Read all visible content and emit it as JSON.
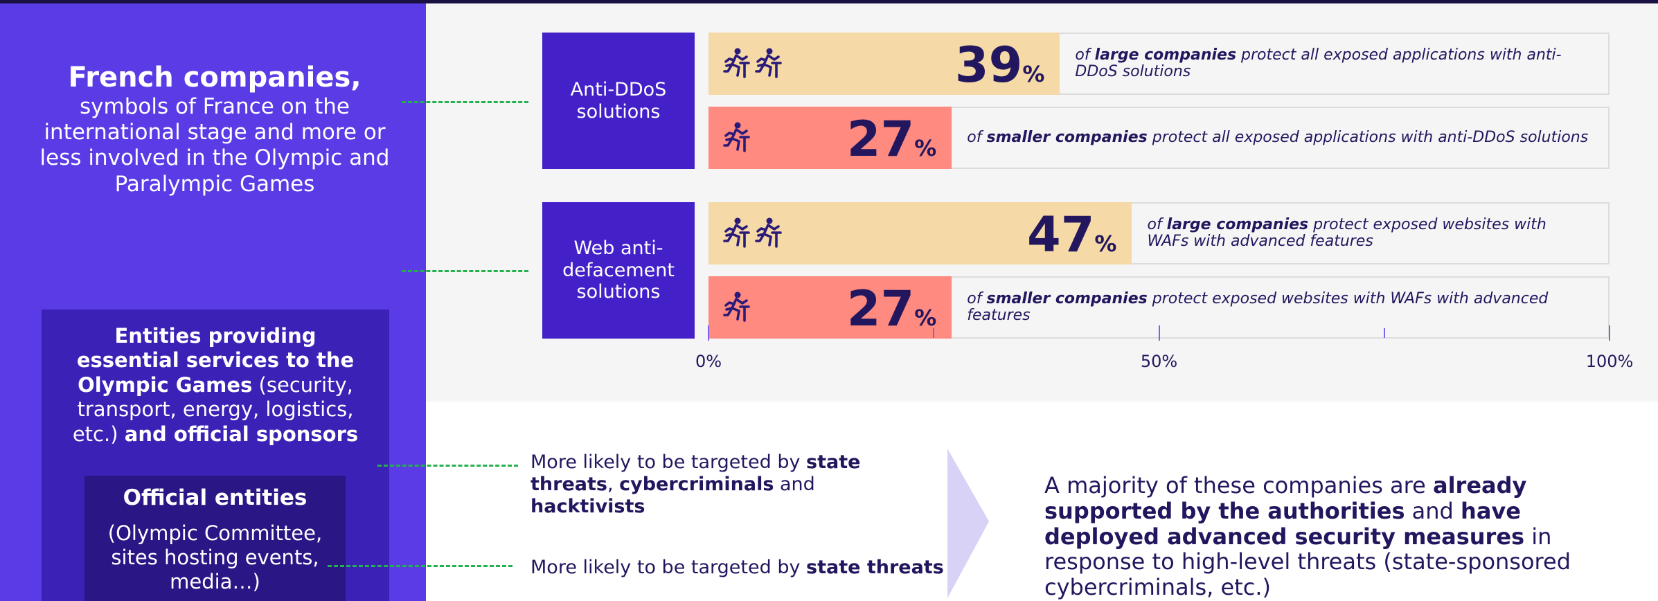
{
  "left_panel": {
    "title": "French companies,",
    "subtitle": "symbols of France on the international stage and more or less involved in the Olympic and Paralympic Games"
  },
  "entities_box": [
    {
      "text": "Entities providing essential services to the Olympic Games",
      "bold": true
    },
    {
      "text": " (security, transport, energy, logistics, etc.) "
    },
    {
      "text": "and official sponsors",
      "bold": true
    }
  ],
  "official_box": {
    "title": "Official entities",
    "text": "(Olympic Committee, sites hosting events, media…)"
  },
  "targets": [
    [
      {
        "text": "More likely to be targeted by "
      },
      {
        "text": "state threats",
        "bold": true
      },
      {
        "text": ", "
      },
      {
        "text": "cybercriminals",
        "bold": true
      },
      {
        "text": " and "
      },
      {
        "text": "hacktivists",
        "bold": true
      }
    ],
    [
      {
        "text": "More likely to be targeted by "
      },
      {
        "text": "state threats",
        "bold": true
      }
    ]
  ],
  "conclusion": [
    {
      "text": "A majority of these companies are "
    },
    {
      "text": "already supported by the authorities",
      "bold": true
    },
    {
      "text": " and "
    },
    {
      "text": "have deployed advanced security measures",
      "bold": true
    },
    {
      "text": " in response to high-level threats (state-sponsored cybercriminals, etc.)"
    }
  ],
  "chart_data": {
    "type": "bar",
    "orientation": "horizontal",
    "xlim": [
      0,
      100
    ],
    "xticks": [
      {
        "value": 0,
        "label": "0%"
      },
      {
        "value": 50,
        "label": "50%"
      },
      {
        "value": 100,
        "label": "100%"
      }
    ],
    "minor_xticks": [
      25,
      75
    ],
    "groups": [
      {
        "label": "Anti-DDoS solutions",
        "bars": [
          {
            "value": 39,
            "value_label": "39%",
            "color": "#f5d9a6",
            "icons": 2,
            "description": [
              {
                "text": "of "
              },
              {
                "text": "large companies",
                "bold": true
              },
              {
                "text": " protect all exposed applications with anti-DDoS solutions"
              }
            ]
          },
          {
            "value": 27,
            "value_label": "27%",
            "color": "#ff8a80",
            "icons": 1,
            "description": [
              {
                "text": "of "
              },
              {
                "text": "smaller companies",
                "bold": true
              },
              {
                "text": " protect all exposed applications with anti-DDoS solutions"
              }
            ]
          }
        ]
      },
      {
        "label": "Web anti-defacement solutions",
        "bars": [
          {
            "value": 47,
            "value_label": "47%",
            "color": "#f5d9a6",
            "icons": 2,
            "description": [
              {
                "text": "of "
              },
              {
                "text": "large companies",
                "bold": true
              },
              {
                "text": " protect exposed websites with WAFs with advanced features"
              }
            ]
          },
          {
            "value": 27,
            "value_label": "27%",
            "color": "#ff8a80",
            "icons": 1,
            "description": [
              {
                "text": "of "
              },
              {
                "text": "smaller companies",
                "bold": true
              },
              {
                "text": " protect exposed websites with WAFs with advanced features"
              }
            ]
          }
        ]
      }
    ]
  }
}
